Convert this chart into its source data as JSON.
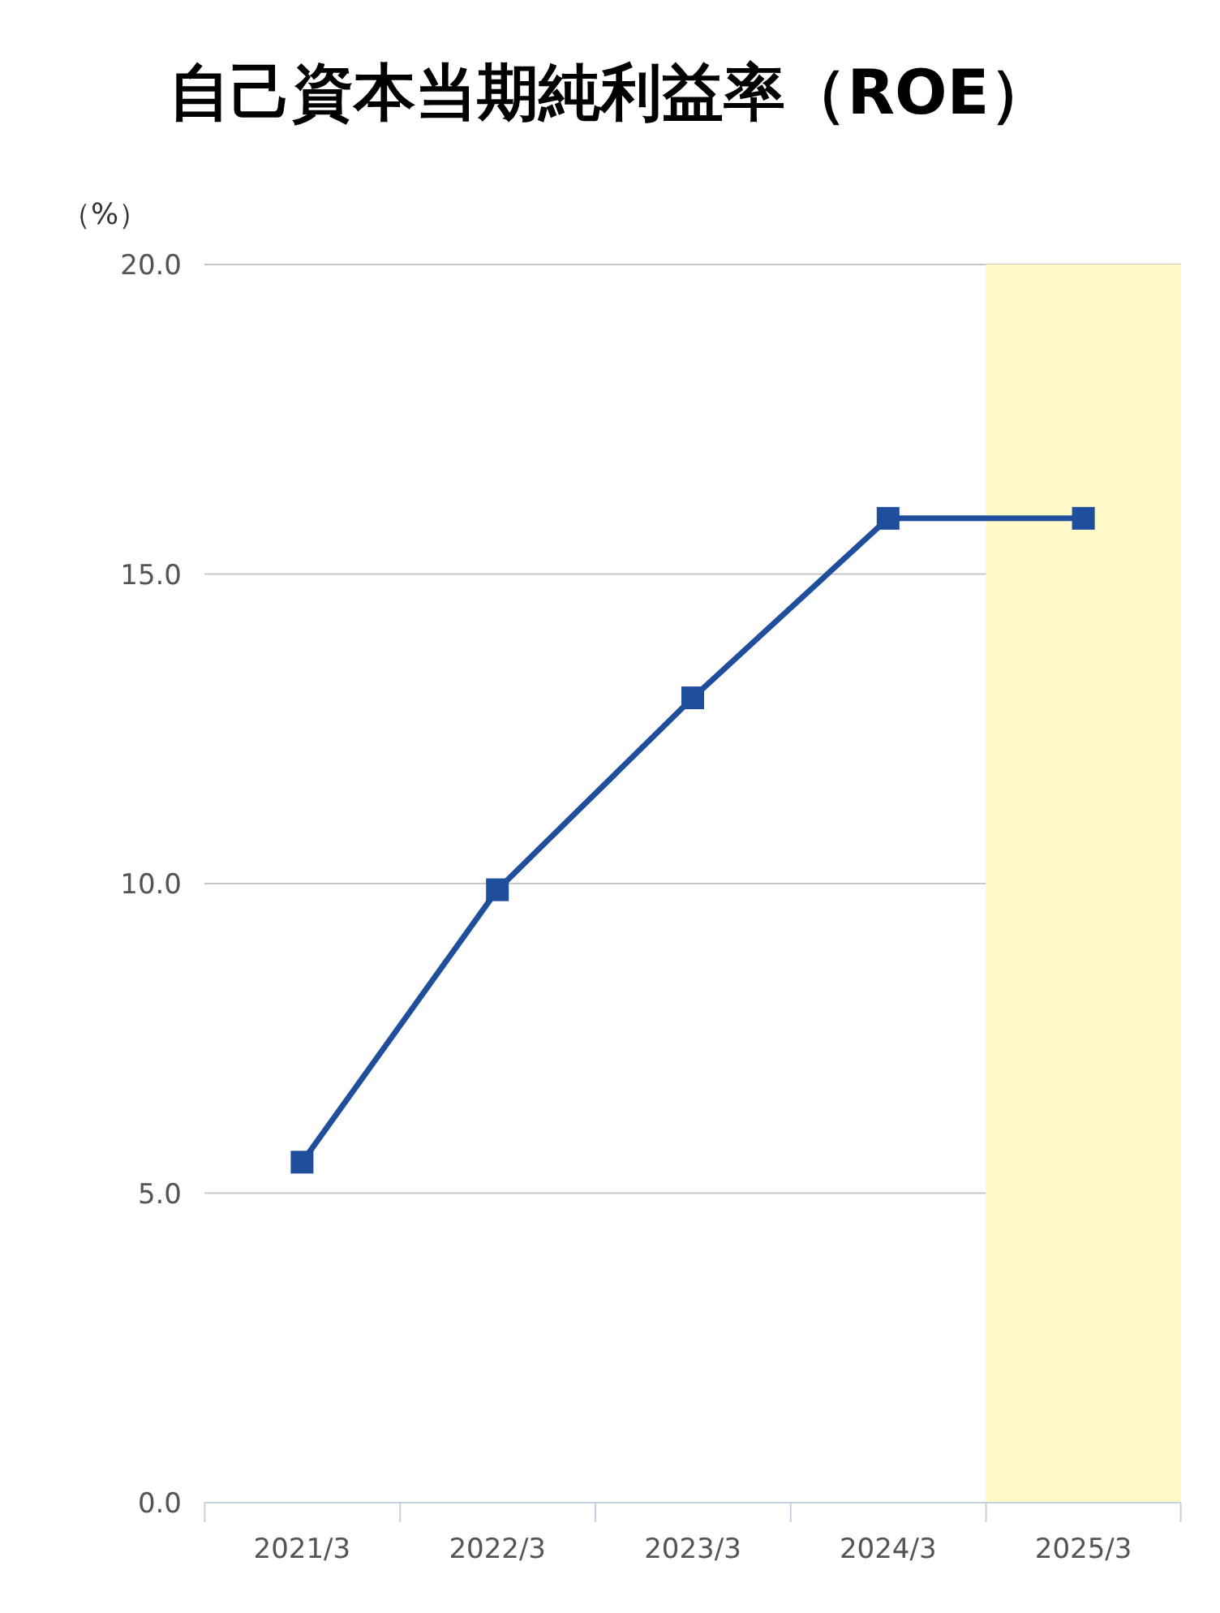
{
  "chart_data": {
    "type": "line",
    "title": "自己資本当期純利益率（ROE）",
    "ylabel": "（%）",
    "categories": [
      "2021/3",
      "2022/3",
      "2023/3",
      "2024/3",
      "2025/3"
    ],
    "series": [
      {
        "color": "#1f4e9c",
        "values": [
          5.5,
          9.9,
          13.0,
          15.9,
          15.9
        ]
      }
    ],
    "ylim": [
      0,
      20
    ],
    "yticks": [
      {
        "value": 0,
        "label": "0.0"
      },
      {
        "value": 5,
        "label": "5.0"
      },
      {
        "value": 10,
        "label": "10.0"
      },
      {
        "value": 15,
        "label": "15.0"
      },
      {
        "value": 20,
        "label": "20.0"
      }
    ],
    "grid": "y",
    "marker": "square",
    "line_style": "solid",
    "legend": false,
    "bands": [
      {
        "axis": "x",
        "from": "2025/3",
        "to": "2025/3",
        "color": "#fff9c8"
      }
    ]
  }
}
